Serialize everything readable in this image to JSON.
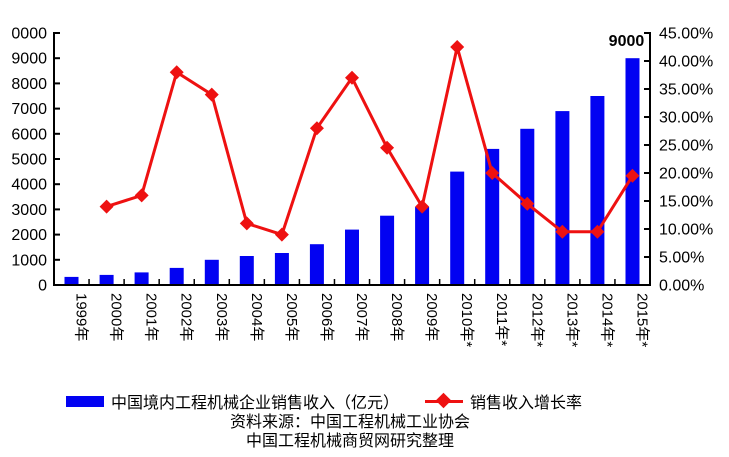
{
  "chart_data": {
    "type": "bar",
    "combo": "bar+line dual-axis",
    "categories": [
      "1999年",
      "2000年",
      "2001年",
      "2002年",
      "2003年",
      "2004年",
      "2005年",
      "2006年",
      "2007年",
      "2008年",
      "2009年",
      "2010年*",
      "2011年*",
      "2012年*",
      "2013年*",
      "2014年*",
      "2015年*"
    ],
    "series": [
      {
        "name": "中国境内工程机械企业销售收入（亿元）",
        "type": "bar",
        "axis": "left",
        "color": "#0202f2",
        "values": [
          320,
          400,
          500,
          680,
          1000,
          1150,
          1270,
          1620,
          2200,
          2750,
          3100,
          4500,
          5400,
          6200,
          6900,
          7500,
          9000
        ]
      },
      {
        "name": "销售收入增长率",
        "type": "line",
        "axis": "right",
        "unit": "%",
        "color": "#ee1111",
        "marker": "diamond",
        "values": [
          null,
          14,
          16,
          38,
          34,
          11,
          9,
          28,
          37,
          24.5,
          14,
          42.5,
          20,
          14.5,
          9.5,
          9.5,
          19.5
        ]
      }
    ],
    "left_axis": {
      "min": 0,
      "max": 10000,
      "step": 1000,
      "tick_labels_bottom_to_top": [
        "0",
        "1000",
        "2000",
        "3000",
        "4000",
        "5000",
        "6000",
        "7000",
        "8000",
        "9000",
        "0000"
      ],
      "note": "top label 10000 is clipped by image edge, shows 0000"
    },
    "right_axis": {
      "min": 0,
      "max": 45,
      "step": 5,
      "tick_labels_bottom_to_top": [
        "0.00%",
        "5.00%",
        "10.00%",
        "15.00%",
        "20.00%",
        "25.00%",
        "30.00%",
        "35.00%",
        "40.00%",
        "45.00%"
      ]
    },
    "annotation": {
      "text": "9000",
      "category": "2015年*"
    },
    "grid": false,
    "legend_position": "bottom",
    "title": ""
  },
  "legend": {
    "bar_label": "中国境内工程机械企业销售收入（亿元）",
    "line_label": "销售收入增长率"
  },
  "source": {
    "line1": "资料来源：中国工程机械工业协会",
    "line2": "中国工程机械商贸网研究整理"
  }
}
